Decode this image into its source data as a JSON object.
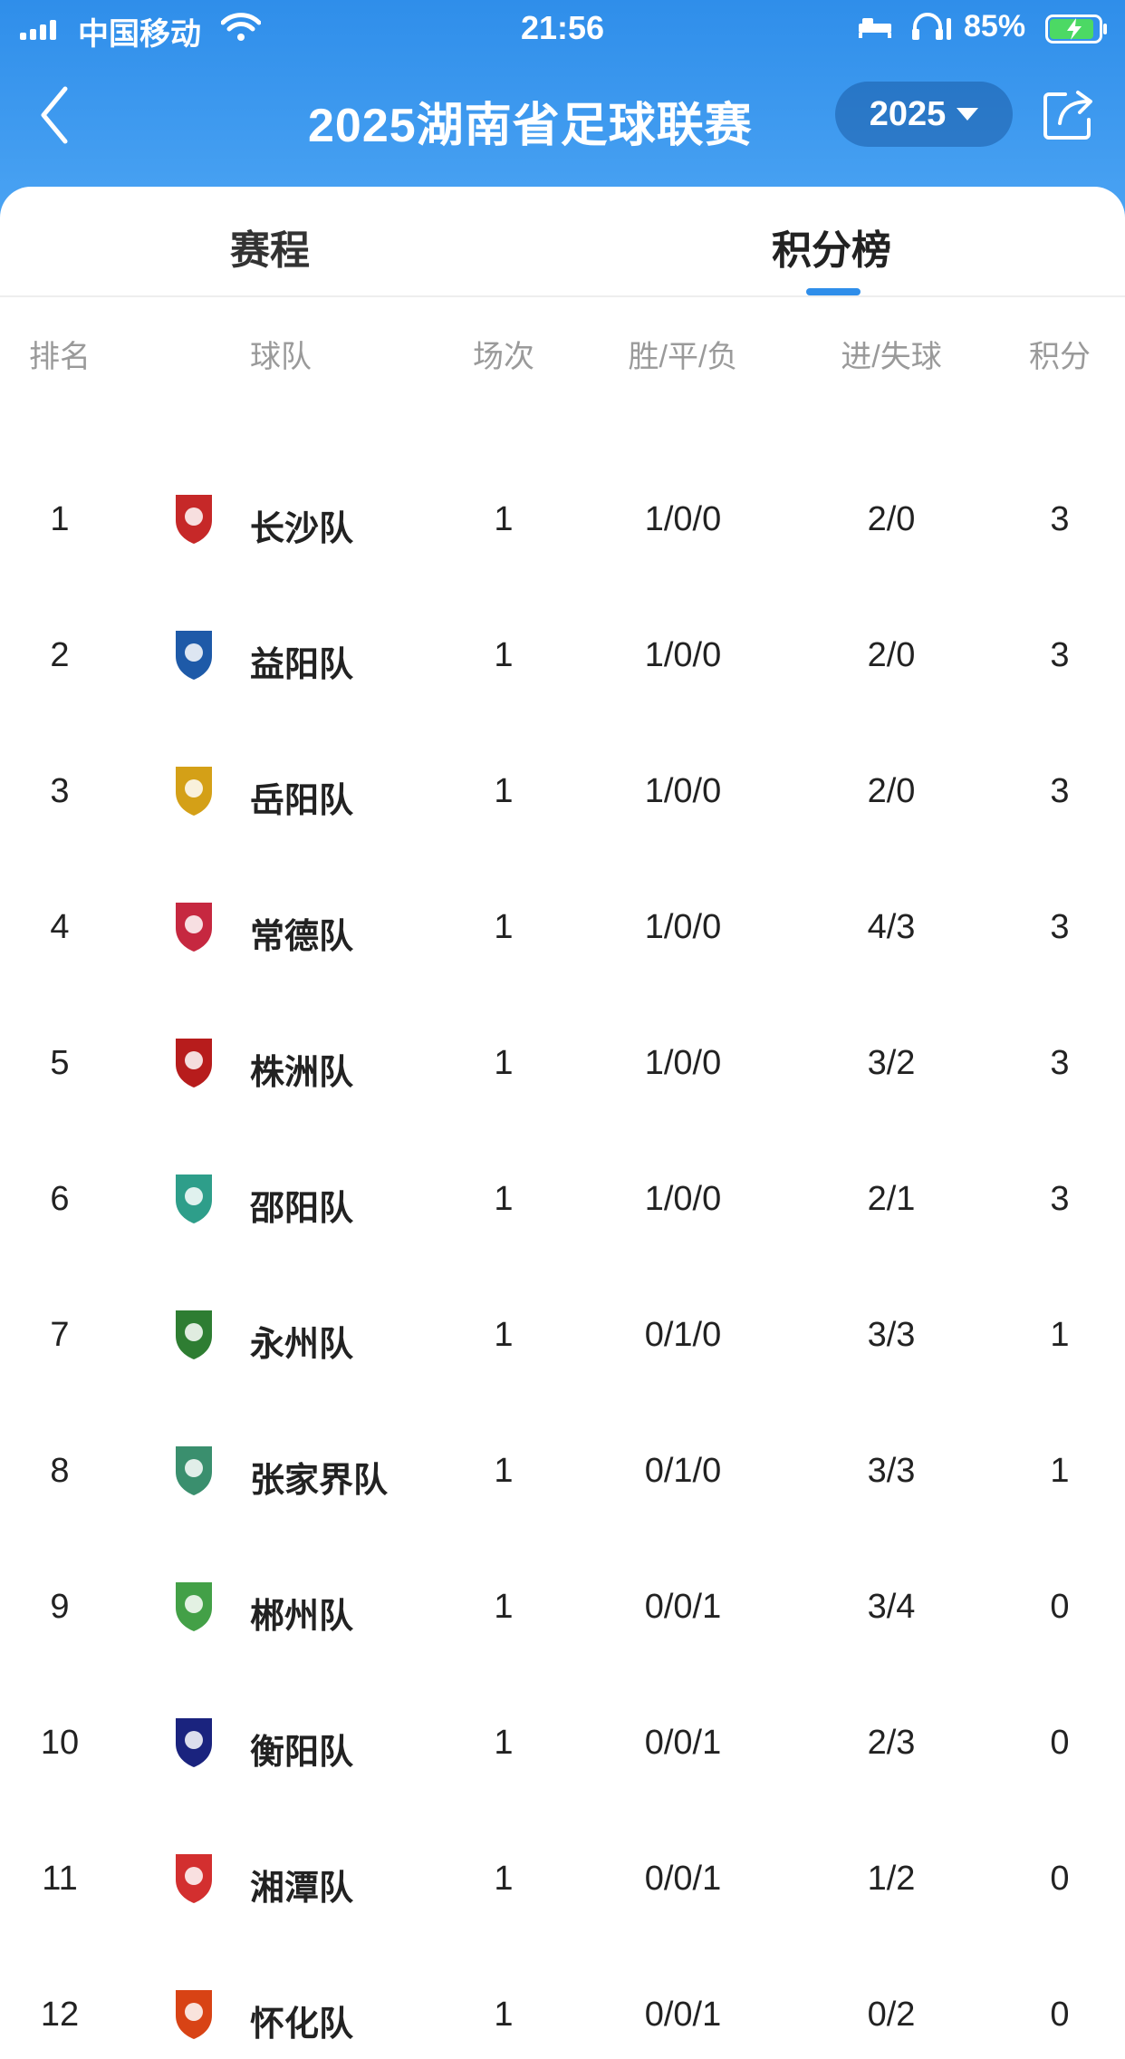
{
  "status_bar": {
    "carrier": "中国移动",
    "time": "21:56",
    "battery": "85%"
  },
  "nav": {
    "title": "2025湖南省足球联赛",
    "year": "2025"
  },
  "tabs": [
    {
      "label": "赛程",
      "active": false
    },
    {
      "label": "积分榜",
      "active": true
    }
  ],
  "table": {
    "headers": {
      "rank": "排名",
      "team": "球队",
      "played": "场次",
      "wdl": "胜/平/负",
      "goals": "进/失球",
      "points": "积分"
    },
    "rows": [
      {
        "rank": "1",
        "team": "长沙队",
        "played": "1",
        "wdl": "1/0/0",
        "goals": "2/0",
        "points": "3",
        "logo_color": "#c62828"
      },
      {
        "rank": "2",
        "team": "益阳队",
        "played": "1",
        "wdl": "1/0/0",
        "goals": "2/0",
        "points": "3",
        "logo_color": "#1e5aa8"
      },
      {
        "rank": "3",
        "team": "岳阳队",
        "played": "1",
        "wdl": "1/0/0",
        "goals": "2/0",
        "points": "3",
        "logo_color": "#d4a017"
      },
      {
        "rank": "4",
        "team": "常德队",
        "played": "1",
        "wdl": "1/0/0",
        "goals": "4/3",
        "points": "3",
        "logo_color": "#c62840"
      },
      {
        "rank": "5",
        "team": "株洲队",
        "played": "1",
        "wdl": "1/0/0",
        "goals": "3/2",
        "points": "3",
        "logo_color": "#b71c1c"
      },
      {
        "rank": "6",
        "team": "邵阳队",
        "played": "1",
        "wdl": "1/0/0",
        "goals": "2/1",
        "points": "3",
        "logo_color": "#2e9e8a"
      },
      {
        "rank": "7",
        "team": "永州队",
        "played": "1",
        "wdl": "0/1/0",
        "goals": "3/3",
        "points": "1",
        "logo_color": "#2e7d32"
      },
      {
        "rank": "8",
        "team": "张家界队",
        "played": "1",
        "wdl": "0/1/0",
        "goals": "3/3",
        "points": "1",
        "logo_color": "#3a8f6e"
      },
      {
        "rank": "9",
        "team": "郴州队",
        "played": "1",
        "wdl": "0/0/1",
        "goals": "3/4",
        "points": "0",
        "logo_color": "#43a047"
      },
      {
        "rank": "10",
        "team": "衡阳队",
        "played": "1",
        "wdl": "0/0/1",
        "goals": "2/3",
        "points": "0",
        "logo_color": "#1a237e"
      },
      {
        "rank": "11",
        "team": "湘潭队",
        "played": "1",
        "wdl": "0/0/1",
        "goals": "1/2",
        "points": "0",
        "logo_color": "#d32f2f"
      },
      {
        "rank": "12",
        "team": "怀化队",
        "played": "1",
        "wdl": "0/0/1",
        "goals": "0/2",
        "points": "0",
        "logo_color": "#d84315"
      }
    ]
  }
}
